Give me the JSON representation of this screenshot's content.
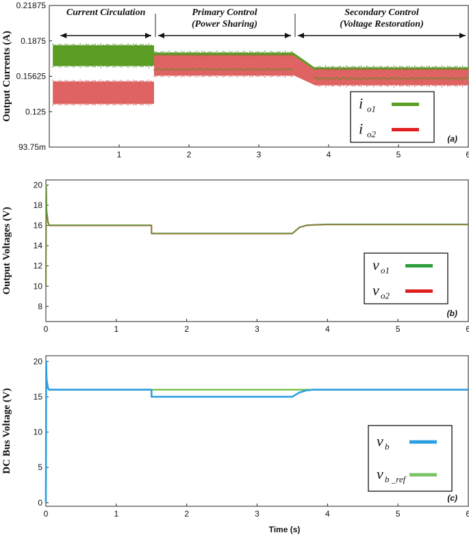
{
  "colors": {
    "green": "#5a9e24",
    "red": "#e06363",
    "vo1": "#2e9e3e",
    "vo2": "#e02020",
    "vb": "#2a9ee0",
    "vb_ref": "#7cc46a",
    "voltage_trace": "#a07a3a",
    "bus_ref_trace": "#6cbf3a"
  },
  "chart_data": [
    {
      "type": "line",
      "panel_label": "(a)",
      "ylabel": "Output Currents (A)",
      "xlabel": "",
      "xlim": [
        0,
        6
      ],
      "ylim": [
        0.09375,
        0.21875
      ],
      "x_ticks": [
        "1",
        "2",
        "3",
        "4",
        "5",
        "6"
      ],
      "x_tick_values": [
        1,
        2,
        3,
        4,
        5,
        6
      ],
      "y_ticks": [
        "0.21875",
        "0.1875",
        "0.15625",
        "0.125",
        "93.75m"
      ],
      "y_tick_values": [
        0.21875,
        0.1875,
        0.15625,
        0.125,
        0.09375
      ],
      "annotations": [
        {
          "lines": [
            "Current Circulation"
          ],
          "x_range": [
            0.1,
            1.5
          ]
        },
        {
          "lines": [
            "Primary Control",
            "(Power Sharing)"
          ],
          "x_range": [
            1.5,
            3.5
          ]
        },
        {
          "lines": [
            "Secondary Control",
            "(Voltage Restoration)"
          ],
          "x_range": [
            3.5,
            6.0
          ]
        }
      ],
      "dividers": [
        1.5,
        3.5
      ],
      "bands": [
        {
          "name": "io1",
          "segments": [
            {
              "x": [
                0.05,
                1.5
              ],
              "lo": 0.1655,
              "hi": 0.1835
            },
            {
              "x": [
                1.5,
                3.5
              ],
              "lo": 0.1625,
              "hi": 0.177
            },
            {
              "x": [
                3.8,
                6.0
              ],
              "lo": 0.1545,
              "hi": 0.164
            }
          ]
        },
        {
          "name": "io2",
          "segments": [
            {
              "x": [
                0.05,
                1.5
              ],
              "lo": 0.132,
              "hi": 0.1515
            },
            {
              "x": [
                1.5,
                3.5
              ],
              "lo": 0.157,
              "hi": 0.1745
            },
            {
              "x": [
                3.8,
                6.0
              ],
              "lo": 0.1485,
              "hi": 0.162
            }
          ]
        }
      ],
      "legend": [
        {
          "main": "i",
          "sub": "o1",
          "color_key": "green"
        },
        {
          "main": "i",
          "sub": "o2",
          "color_key": "vo2"
        }
      ]
    },
    {
      "type": "line",
      "panel_label": "(b)",
      "ylabel": "Output Voltages (V)",
      "xlabel": "",
      "xlim": [
        0,
        6
      ],
      "ylim": [
        6.5,
        20.5
      ],
      "x_ticks": [
        "0",
        "1",
        "2",
        "3",
        "4",
        "5",
        "6"
      ],
      "x_tick_values": [
        0,
        1,
        2,
        3,
        4,
        5,
        6
      ],
      "y_ticks": [
        "20",
        "18",
        "16",
        "14",
        "12",
        "10",
        "8"
      ],
      "y_tick_values": [
        20,
        18,
        16,
        14,
        12,
        10,
        8
      ],
      "series": [
        {
          "name": "vo1 / vo2",
          "x": [
            0,
            0.005,
            0.01,
            0.03,
            0.05,
            1.5,
            1.5,
            3.5,
            3.55,
            3.6,
            3.7,
            3.8,
            4.0,
            6.0
          ],
          "y": [
            10,
            20,
            17.5,
            16.3,
            16.0,
            16.0,
            15.2,
            15.2,
            15.5,
            15.8,
            16.0,
            16.05,
            16.1,
            16.1
          ]
        }
      ],
      "legend": [
        {
          "main": "v",
          "sub": "o1",
          "color_key": "vo1"
        },
        {
          "main": "v",
          "sub": "o2",
          "color_key": "vo2"
        }
      ]
    },
    {
      "type": "line",
      "panel_label": "(c)",
      "ylabel": "DC Bus Voltage (V)",
      "xlabel": "Time (s)",
      "xlim": [
        0,
        6
      ],
      "ylim": [
        -0.5,
        20.8
      ],
      "x_ticks": [
        "0",
        "1",
        "2",
        "3",
        "4",
        "5",
        "6"
      ],
      "x_tick_values": [
        0,
        1,
        2,
        3,
        4,
        5,
        6
      ],
      "y_ticks": [
        "20",
        "15",
        "10",
        "5",
        "0"
      ],
      "y_tick_values": [
        20,
        15,
        10,
        5,
        0
      ],
      "series": [
        {
          "name": "vb_ref",
          "color_key": "bus_ref_trace",
          "x": [
            0.03,
            6.0
          ],
          "y": [
            16,
            16
          ]
        },
        {
          "name": "vb",
          "color_key": "vb",
          "x": [
            0,
            0.005,
            0.01,
            0.03,
            0.05,
            1.5,
            1.5,
            3.5,
            3.55,
            3.6,
            3.7,
            3.8,
            4.0,
            6.0
          ],
          "y": [
            0,
            20,
            17.5,
            16.2,
            16.0,
            16.0,
            15.0,
            15.0,
            15.3,
            15.6,
            15.9,
            16.0,
            16.0,
            16.0
          ]
        }
      ],
      "legend": [
        {
          "main": "v",
          "sub": "b",
          "color_key": "vb"
        },
        {
          "main": "v",
          "sub": "b _ref",
          "color_key": "vb_ref"
        }
      ]
    }
  ]
}
